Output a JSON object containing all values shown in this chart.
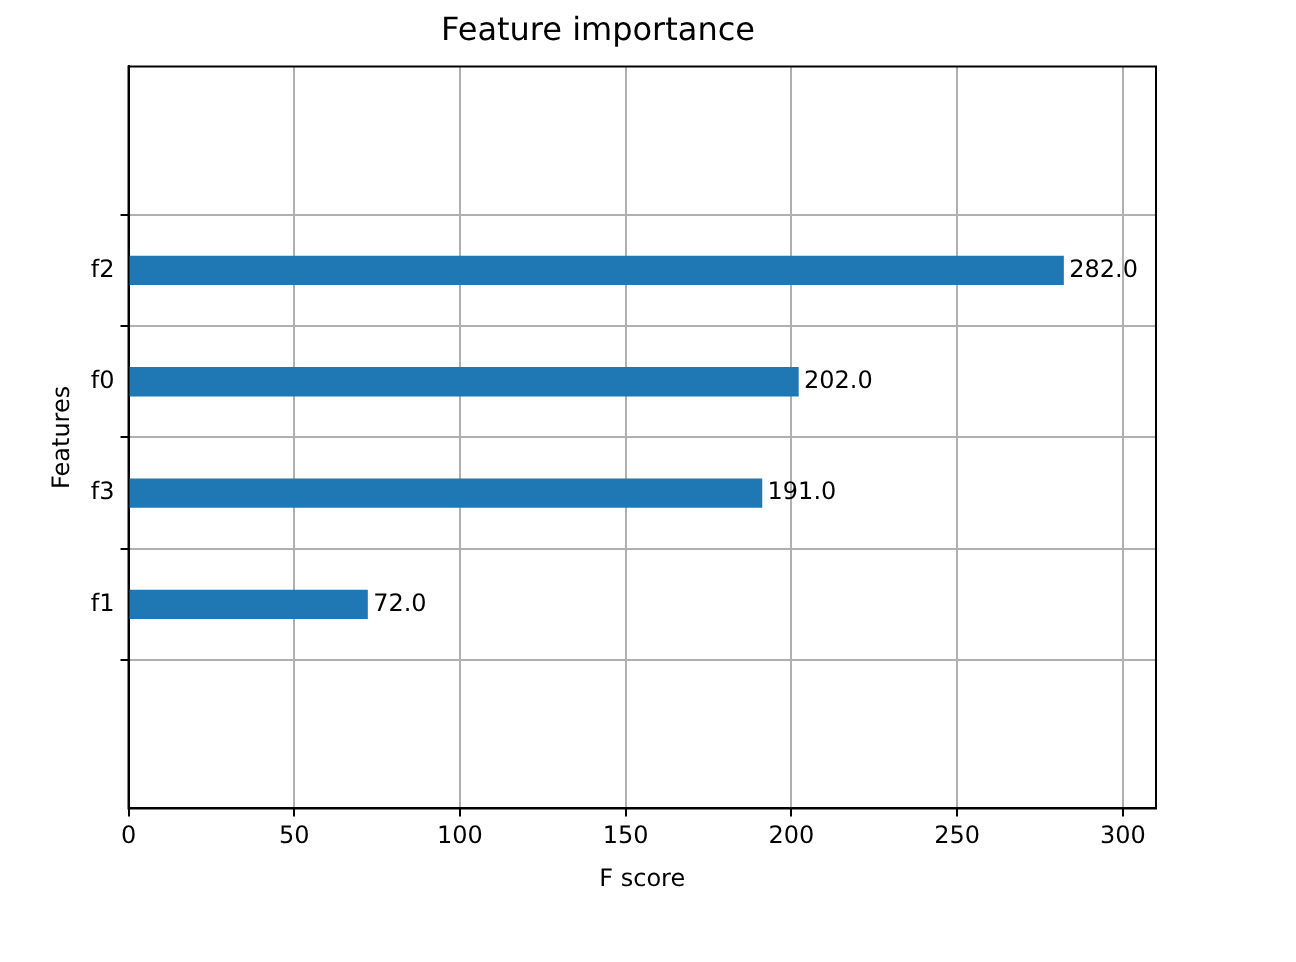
{
  "chart_data": {
    "type": "bar",
    "orientation": "horizontal",
    "title": "Feature importance",
    "xlabel": "F score",
    "ylabel": "Features",
    "categories": [
      "f2",
      "f0",
      "f3",
      "f1"
    ],
    "values": [
      282,
      202,
      191,
      72
    ],
    "value_labels": [
      "282.0",
      "202.0",
      "191.0",
      "72.0"
    ],
    "color": "#1f77b4",
    "xlim": [
      0,
      310
    ],
    "xticks": [
      0,
      50,
      100,
      150,
      200,
      250,
      300
    ],
    "grid": true,
    "legend": false
  }
}
